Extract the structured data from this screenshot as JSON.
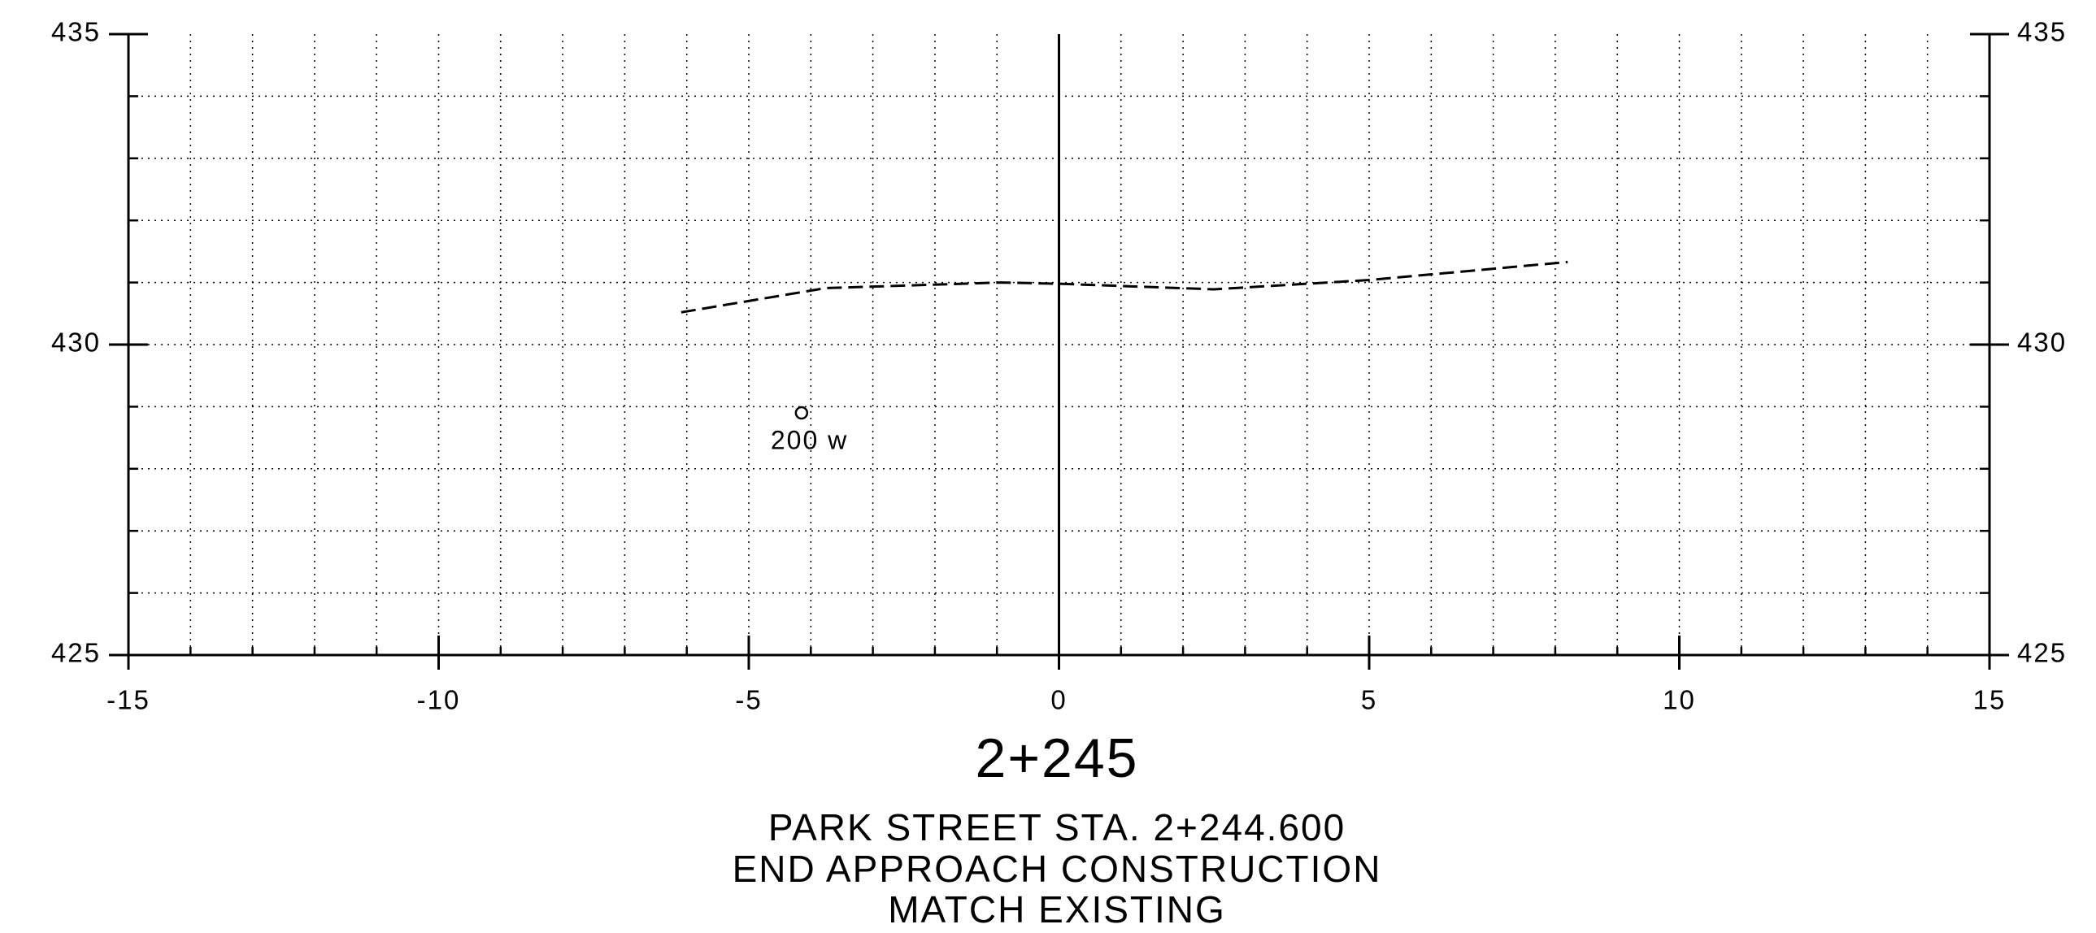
{
  "chart_data": {
    "type": "line",
    "station": "2+245",
    "title_lines": [
      "PARK STREET STA. 2+244.600",
      "END APPROACH CONSTRUCTION",
      "MATCH EXISTING"
    ],
    "x": [
      -6.09,
      -3.76,
      -0.93,
      0,
      2.5,
      5,
      8.2
    ],
    "series": [
      {
        "color": "#000000",
        "dash": true,
        "values": [
          430.52,
          430.91,
          431.0,
          430.98,
          430.89,
          431.04,
          431.33
        ]
      }
    ],
    "annotations": [
      {
        "x": -4.15,
        "y": 428.9,
        "text": "200 w"
      }
    ],
    "centerline": 0,
    "xlim": [
      -15,
      15
    ],
    "ylim": [
      425,
      435
    ],
    "xticks": [
      -15,
      -10,
      -5,
      0,
      5,
      10,
      15
    ],
    "yticks": [
      425,
      430,
      435
    ],
    "grid": {
      "x": 1,
      "y": 1
    }
  }
}
